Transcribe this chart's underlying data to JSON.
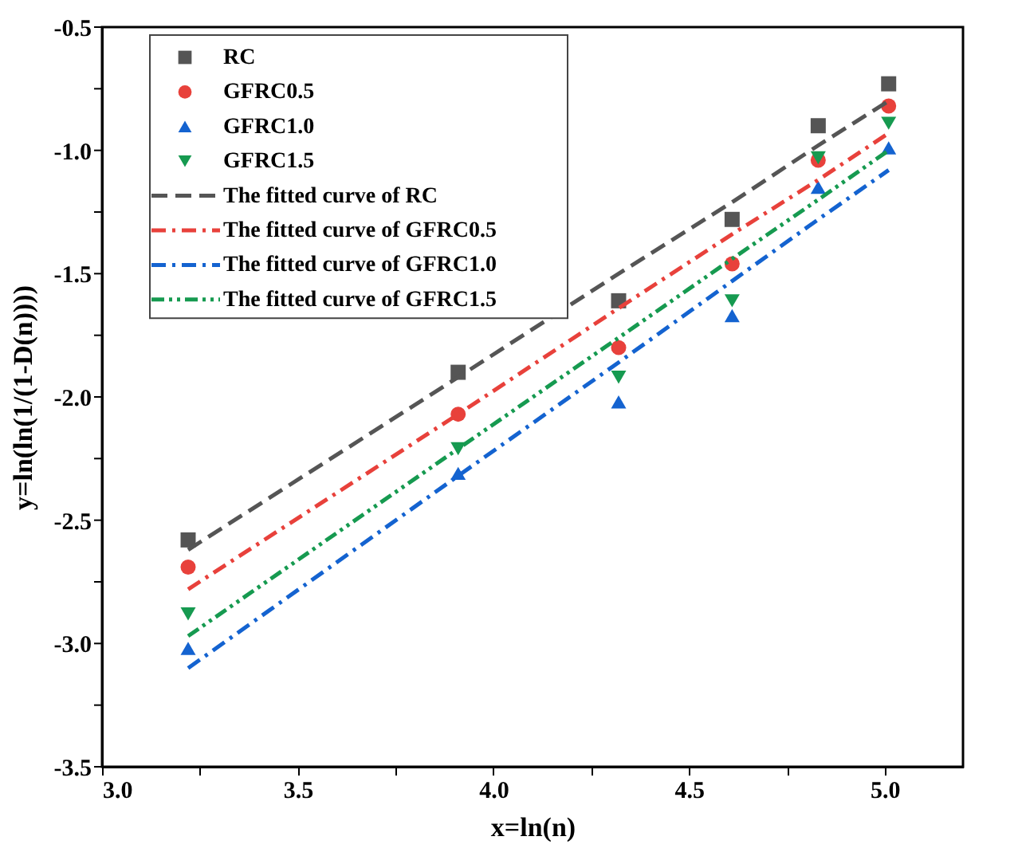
{
  "chart_data": {
    "type": "scatter",
    "xlabel": "x=ln(n)",
    "ylabel": "y=ln(ln(1/(1-D(n))))",
    "xlim": [
      3.0,
      5.2
    ],
    "ylim": [
      -3.5,
      -0.5
    ],
    "xticks": [
      {
        "value": 3.0,
        "label": "3.0"
      },
      {
        "value": 3.25,
        "label": null
      },
      3.5,
      {
        "value": 3.75,
        "label": null
      },
      {
        "value": 4.0,
        "label": "4.0"
      },
      {
        "value": 4.25,
        "label": null
      },
      4.5,
      {
        "value": 4.75,
        "label": null
      },
      {
        "value": 5.0,
        "label": "5.0"
      }
    ],
    "yticks": [
      {
        "value": -3.5,
        "label": "-3.5"
      },
      {
        "value": -3.25,
        "label": null
      },
      {
        "value": -3.0,
        "label": "-3.0"
      },
      {
        "value": -2.75,
        "label": null
      },
      {
        "value": -2.5,
        "label": "-2.5"
      },
      {
        "value": -2.25,
        "label": null
      },
      {
        "value": -2.0,
        "label": "-2.0"
      },
      {
        "value": -1.75,
        "label": null
      },
      {
        "value": -1.5,
        "label": "-1.5"
      },
      {
        "value": -1.25,
        "label": null
      },
      {
        "value": -1.0,
        "label": "-1.0"
      },
      {
        "value": -0.75,
        "label": null
      },
      {
        "value": -0.5,
        "label": "-0.5"
      }
    ],
    "x": [
      3.22,
      3.91,
      4.32,
      4.61,
      4.83,
      5.01
    ],
    "grid": false,
    "legend": "top left",
    "series": [
      {
        "name": "RC",
        "marker": "square",
        "color": "#555555",
        "values": [
          -2.58,
          -1.9,
          -1.61,
          -1.28,
          -0.9,
          -0.73
        ]
      },
      {
        "name": "GFRC0.5",
        "marker": "circle",
        "color": "#e8413b",
        "values": [
          -2.69,
          -2.07,
          -1.8,
          -1.46,
          -1.04,
          -0.82
        ]
      },
      {
        "name": "GFRC1.0",
        "marker": "triangle",
        "color": "#1463d0",
        "values": [
          -3.02,
          -2.31,
          -2.02,
          -1.67,
          -1.15,
          -0.99
        ]
      },
      {
        "name": "GFRC1.5",
        "marker": "triangle-down",
        "color": "#169a50",
        "values": [
          -2.88,
          -2.21,
          -1.92,
          -1.61,
          -1.03,
          -0.89
        ]
      },
      {
        "name": "The fitted curve of RC",
        "type": "line",
        "line_style": "dashed",
        "color": "#555555",
        "values": [
          -2.62,
          -1.92,
          -1.5,
          -1.21,
          -0.98,
          -0.8
        ]
      },
      {
        "name": "The fitted curve of GFRC0.5",
        "type": "line",
        "line_style": "dashdot",
        "color": "#e8413b",
        "values": [
          -2.78,
          -2.07,
          -1.64,
          -1.34,
          -1.12,
          -0.93
        ]
      },
      {
        "name": "The fitted curve of GFRC1.0",
        "type": "line",
        "line_style": "dashdot",
        "color": "#1463d0",
        "values": [
          -3.1,
          -2.32,
          -1.86,
          -1.53,
          -1.28,
          -1.08
        ]
      },
      {
        "name": "The fitted curve of GFRC1.5",
        "type": "line",
        "line_style": "dashdotdot",
        "color": "#169a50",
        "values": [
          -2.97,
          -2.21,
          -1.76,
          -1.44,
          -1.2,
          -1.0
        ]
      }
    ]
  }
}
